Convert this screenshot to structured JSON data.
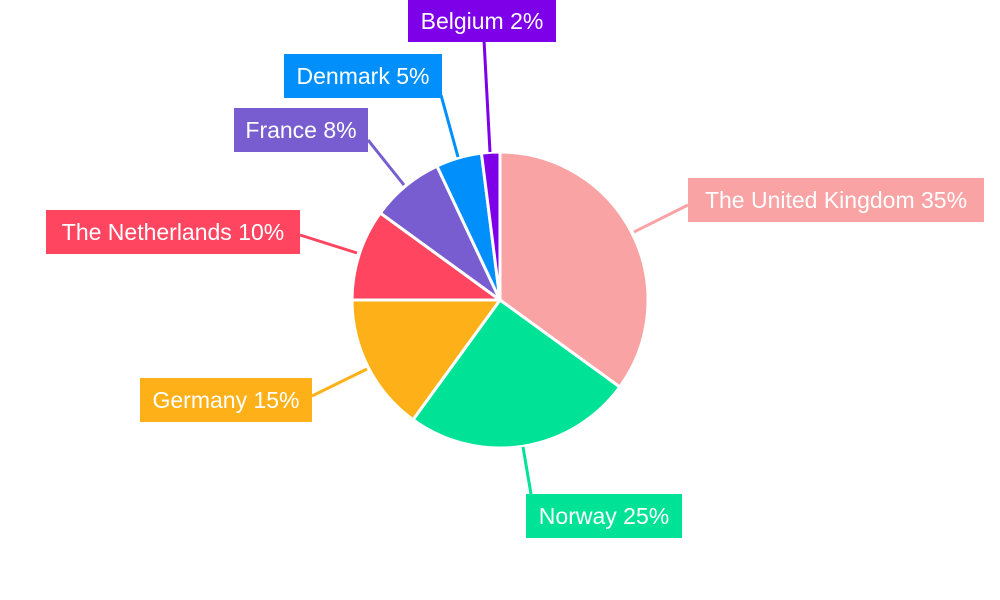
{
  "chart_data": {
    "type": "pie",
    "title": "",
    "start": "top",
    "direction": "clockwise",
    "slices": [
      {
        "label": "The United Kingdom",
        "value": 35,
        "text": "The United Kingdom 35%",
        "color": "#f9a3a4"
      },
      {
        "label": "Norway",
        "value": 25,
        "text": "Norway 25%",
        "color": "#00e396"
      },
      {
        "label": "Germany",
        "value": 15,
        "text": "Germany 15%",
        "color": "#feb019"
      },
      {
        "label": "The Netherlands",
        "value": 10,
        "text": "The Netherlands 10%",
        "color": "#ff4560"
      },
      {
        "label": "France",
        "value": 8,
        "text": "France 8%",
        "color": "#775dd0"
      },
      {
        "label": "Denmark",
        "value": 5,
        "text": "Denmark 5%",
        "color": "#008ffb"
      },
      {
        "label": "Belgium",
        "value": 2,
        "text": "Belgium 2%",
        "color": "#7d00e8"
      }
    ]
  }
}
